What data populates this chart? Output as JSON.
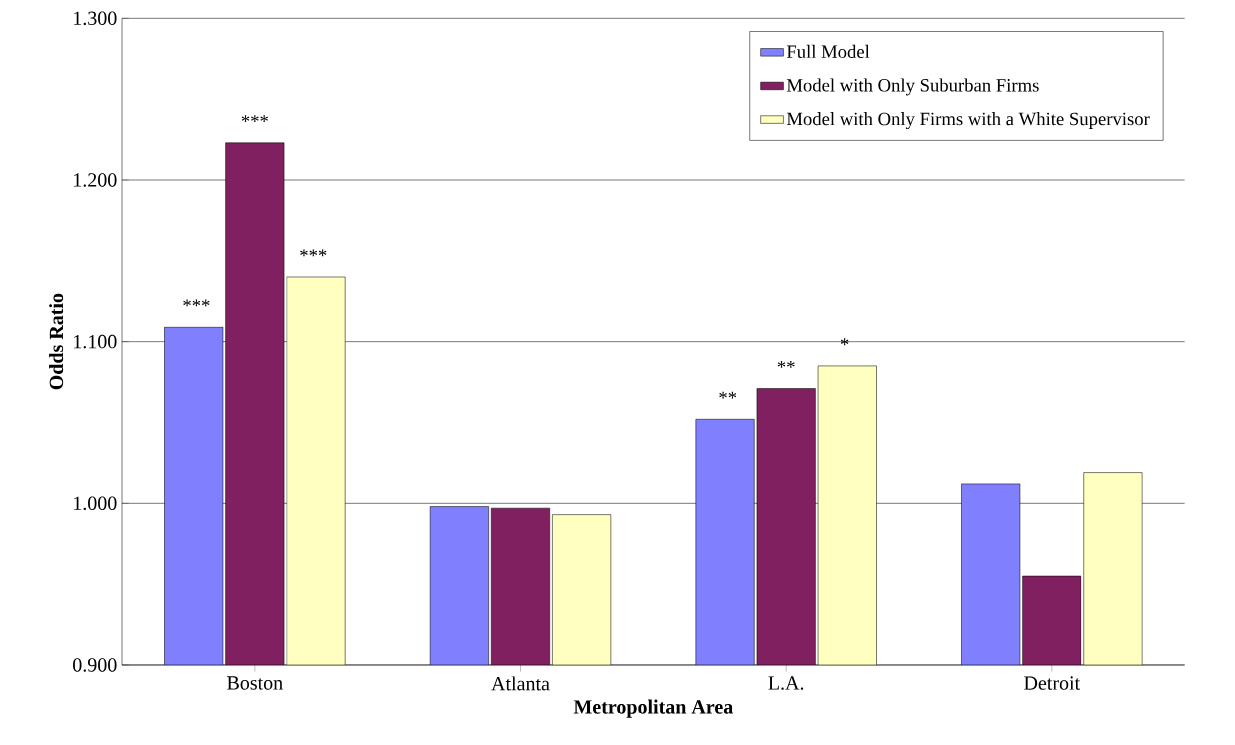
{
  "chart_data": {
    "type": "bar",
    "xlabel": "Metropolitan Area",
    "ylabel": "Odds Ratio",
    "categories": [
      "Boston",
      "Atlanta",
      "L.A.",
      "Detroit"
    ],
    "series": [
      {
        "name": "Full Model",
        "color": "#8080ff",
        "values": [
          1.109,
          0.998,
          1.052,
          1.012
        ],
        "value_labels": [
          "***",
          null,
          "**",
          null
        ]
      },
      {
        "name": "Model with Only Suburban Firms",
        "color": "#802060",
        "values": [
          1.223,
          0.997,
          1.071,
          0.955
        ],
        "value_labels": [
          "***",
          null,
          "**",
          null
        ]
      },
      {
        "name": "Model with Only Firms with a White Supervisor",
        "color": "#ffffc0",
        "values": [
          1.14,
          0.993,
          1.085,
          1.019
        ],
        "value_labels": [
          "***",
          null,
          "*",
          null
        ]
      }
    ],
    "ylim": [
      0.9,
      1.3
    ],
    "yticks": [
      {
        "value": 0.9,
        "label": "0.900"
      },
      {
        "value": 1.0,
        "label": "1.000"
      },
      {
        "value": 1.1,
        "label": "1.100"
      },
      {
        "value": 1.2,
        "label": "1.200"
      },
      {
        "value": 1.3,
        "label": "1.300"
      }
    ],
    "grid": "y",
    "legend": "top right"
  }
}
